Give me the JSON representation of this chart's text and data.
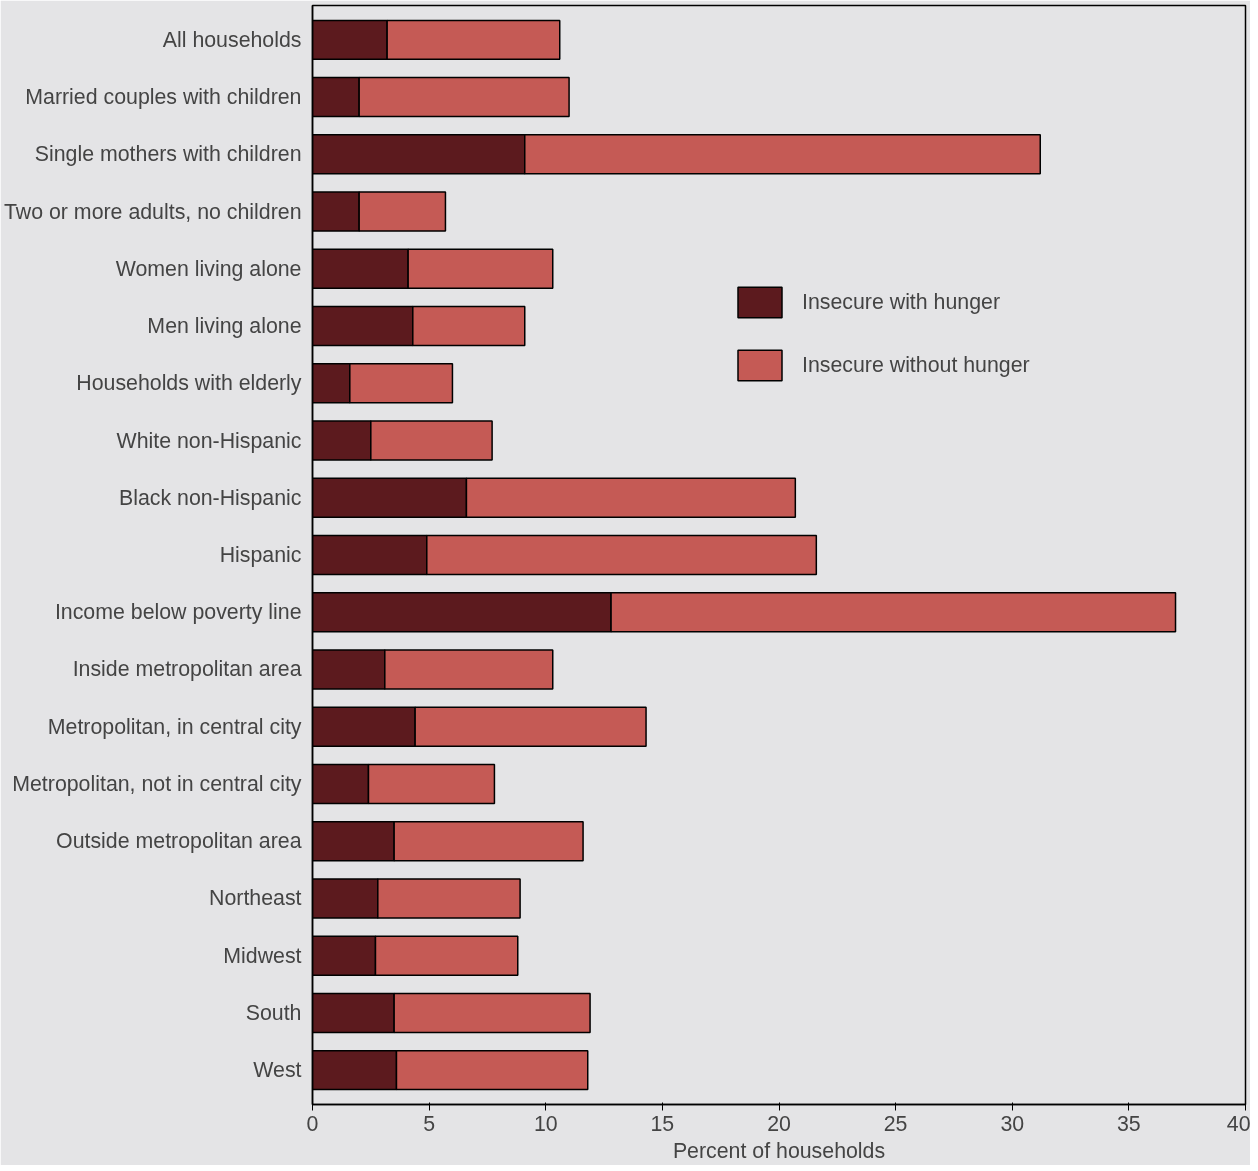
{
  "chart_data": {
    "type": "bar",
    "orientation": "horizontal",
    "stacked": true,
    "xlabel": "Percent of households",
    "categories": [
      "All households",
      "Married couples with children",
      "Single mothers with children",
      "Two or more adults, no children",
      "Women living alone",
      "Men living alone",
      "Households with elderly",
      "White non-Hispanic",
      "Black non-Hispanic",
      "Hispanic",
      "Income below poverty line",
      "Inside metropolitan area",
      "Metropolitan, in central city",
      "Metropolitan, not in central city",
      "Outside metropolitan area",
      "Northeast",
      "Midwest",
      "South",
      "West"
    ],
    "series": [
      {
        "name": "Insecure with hunger",
        "color": "#5c1a1e",
        "values": [
          3.2,
          2.0,
          9.1,
          2.0,
          4.1,
          4.3,
          1.6,
          2.5,
          6.6,
          4.9,
          12.8,
          3.1,
          4.4,
          2.4,
          3.5,
          2.8,
          2.7,
          3.5,
          3.6
        ]
      },
      {
        "name": "Insecure without hunger",
        "color": "#c55a55",
        "values": [
          7.4,
          9.0,
          22.1,
          3.7,
          6.2,
          4.8,
          4.4,
          5.2,
          14.1,
          16.7,
          24.2,
          7.2,
          9.9,
          5.4,
          8.1,
          6.1,
          6.1,
          8.4,
          8.2
        ]
      }
    ],
    "xlim": [
      0,
      40
    ],
    "xticks": [
      0,
      5,
      10,
      15,
      20,
      25,
      30,
      35,
      40
    ],
    "grid": false,
    "legend": "top right"
  }
}
